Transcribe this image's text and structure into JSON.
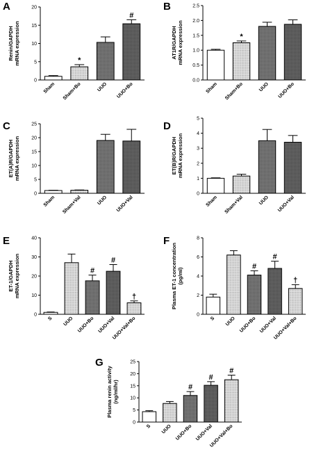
{
  "chart_data": [
    {
      "id": "A",
      "type": "bar",
      "panel_label": "A",
      "ylabel": [
        "Renin/GAPDH",
        "mRNA expression"
      ],
      "categories": [
        "Sham",
        "Sham+Bo",
        "UUO",
        "UUO+Bo"
      ],
      "values": [
        1.0,
        3.6,
        10.3,
        15.4
      ],
      "errors": [
        0.2,
        0.6,
        1.5,
        1.1
      ],
      "annotations": [
        "",
        "*",
        "",
        "#"
      ],
      "fills": [
        "white",
        "dots",
        "dark",
        "darker"
      ],
      "ylim": [
        0,
        20
      ],
      "yticks": [
        0,
        5,
        10,
        15,
        20
      ]
    },
    {
      "id": "B",
      "type": "bar",
      "panel_label": "B",
      "ylabel": [
        "AT1R/GAPDH",
        "mRNA expression"
      ],
      "categories": [
        "Sham",
        "Sham+Bo",
        "UUO",
        "UUO+Bo"
      ],
      "values": [
        1.0,
        1.25,
        1.8,
        1.87
      ],
      "errors": [
        0.03,
        0.06,
        0.14,
        0.15
      ],
      "annotations": [
        "",
        "*",
        "",
        ""
      ],
      "fills": [
        "white",
        "dots",
        "dark",
        "darker"
      ],
      "ylim": [
        0,
        2.5
      ],
      "yticks": [
        0.0,
        0.5,
        1.0,
        1.5,
        2.0,
        2.5
      ]
    },
    {
      "id": "C",
      "type": "bar",
      "panel_label": "C",
      "ylabel": [
        "ET(A)R/GAPDH",
        "mRNA expression"
      ],
      "categories": [
        "Sham",
        "Sham+Val",
        "UUO",
        "UUO+Val"
      ],
      "values": [
        1.0,
        1.1,
        19.0,
        18.8
      ],
      "errors": [
        0.1,
        0.1,
        2.2,
        4.2
      ],
      "annotations": [
        "",
        "",
        "",
        ""
      ],
      "fills": [
        "white",
        "dots",
        "dark",
        "darker"
      ],
      "ylim": [
        0,
        25
      ],
      "yticks": [
        0,
        5,
        10,
        15,
        20,
        25
      ]
    },
    {
      "id": "D",
      "type": "bar",
      "panel_label": "D",
      "ylabel": [
        "ET(B)R/GAPDH",
        "mRNA expression"
      ],
      "categories": [
        "Sham",
        "Sham+Val",
        "UUO",
        "UUO+Val"
      ],
      "values": [
        1.0,
        1.15,
        3.5,
        3.4
      ],
      "errors": [
        0.03,
        0.12,
        0.75,
        0.45
      ],
      "annotations": [
        "",
        "",
        "",
        ""
      ],
      "fills": [
        "white",
        "dots",
        "dark",
        "darker"
      ],
      "ylim": [
        0,
        5
      ],
      "yticks": [
        0,
        1,
        2,
        3,
        4,
        5
      ]
    },
    {
      "id": "E",
      "type": "bar",
      "panel_label": "E",
      "ylabel": [
        "ET-1/GAPDH",
        "mRNA expression"
      ],
      "categories": [
        "S",
        "UUO",
        "UUO+Bo",
        "UUO+Val",
        "UUO+Val+Bo"
      ],
      "values": [
        1.0,
        27.0,
        17.5,
        22.5,
        6.0
      ],
      "errors": [
        0.2,
        4.5,
        3.0,
        3.5,
        1.0
      ],
      "annotations": [
        "",
        "",
        "#",
        "#",
        "†"
      ],
      "fills": [
        "white",
        "dots",
        "dark",
        "darker",
        "dots"
      ],
      "ylim": [
        0,
        40
      ],
      "yticks": [
        0,
        10,
        20,
        30,
        40
      ]
    },
    {
      "id": "F",
      "type": "bar",
      "panel_label": "F",
      "ylabel": [
        "Plasma ET-1 concentration",
        "(pg/ml)"
      ],
      "categories": [
        "S",
        "UUO",
        "UUO+Bo",
        "UUO+Val",
        "UUO+Val+Bo"
      ],
      "values": [
        1.8,
        6.2,
        4.1,
        4.8,
        2.7
      ],
      "errors": [
        0.3,
        0.45,
        0.45,
        0.75,
        0.4
      ],
      "annotations": [
        "",
        "",
        "#",
        "#",
        "†"
      ],
      "fills": [
        "white",
        "dots",
        "dark",
        "darker",
        "dots"
      ],
      "ylim": [
        0,
        8
      ],
      "yticks": [
        0,
        2,
        4,
        6,
        8
      ]
    },
    {
      "id": "G",
      "type": "bar",
      "panel_label": "G",
      "ylabel": [
        "Plasma renin activity",
        "(ng/ml/hr)"
      ],
      "categories": [
        "S",
        "UUO",
        "UUO+Bo",
        "UUO+Val",
        "UUO+Val+Bo"
      ],
      "values": [
        4.3,
        7.7,
        11.0,
        15.2,
        17.5
      ],
      "errors": [
        0.4,
        0.8,
        1.6,
        1.5,
        1.9
      ],
      "annotations": [
        "",
        "",
        "#",
        "#",
        "#"
      ],
      "fills": [
        "white",
        "dots",
        "dark",
        "darker",
        "dots"
      ],
      "ylim": [
        0,
        25
      ],
      "yticks": [
        0,
        5,
        10,
        15,
        20,
        25
      ]
    }
  ],
  "colors": {
    "axis": "#000000",
    "bar_outline": "#000000",
    "fill_white": "#ffffff",
    "fill_dots": "#d4d4d4",
    "fill_dark": "#6e6e6e",
    "fill_darker": "#585858"
  }
}
